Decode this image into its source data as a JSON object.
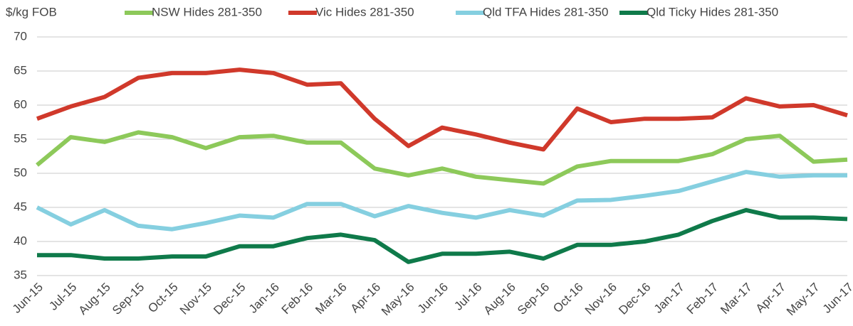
{
  "chart_data": {
    "type": "line",
    "y_label": "$/kg FOB",
    "categories": [
      "Jun-15",
      "Jul-15",
      "Aug-15",
      "Sep-15",
      "Oct-15",
      "Nov-15",
      "Dec-15",
      "Jan-16",
      "Feb-16",
      "Mar-16",
      "Apr-16",
      "May-16",
      "Jun-16",
      "Jul-16",
      "Aug-16",
      "Sep-16",
      "Oct-16",
      "Nov-16",
      "Dec-16",
      "Jan-17",
      "Feb-17",
      "Mar-17",
      "Apr-17",
      "May-17",
      "Jun-17"
    ],
    "series": [
      {
        "name": "NSW Hides 281-350",
        "color": "#8dc95a",
        "values": [
          51.2,
          55.3,
          54.6,
          56.0,
          55.3,
          53.7,
          55.3,
          55.5,
          54.5,
          54.5,
          50.7,
          49.7,
          50.7,
          49.5,
          49.0,
          48.5,
          51.0,
          51.8,
          51.8,
          51.8,
          52.8,
          55.0,
          55.5,
          51.7,
          52.0
        ]
      },
      {
        "name": "Vic Hides 281-350",
        "color": "#d0392b",
        "values": [
          58.0,
          59.8,
          61.2,
          64.0,
          64.7,
          64.7,
          65.2,
          64.7,
          63.0,
          63.2,
          58.0,
          54.0,
          56.7,
          55.7,
          54.5,
          53.5,
          59.5,
          57.5,
          58.0,
          58.0,
          58.2,
          61.0,
          59.8,
          60.0,
          58.5
        ]
      },
      {
        "name": "Qld TFA Hides 281-350",
        "color": "#85cfe0",
        "values": [
          45.0,
          42.5,
          44.6,
          42.3,
          41.8,
          42.7,
          43.8,
          43.5,
          45.5,
          45.5,
          43.7,
          45.2,
          44.2,
          43.5,
          44.6,
          43.8,
          46.0,
          46.1,
          46.7,
          47.4,
          48.8,
          50.2,
          49.5,
          49.7,
          49.7
        ]
      },
      {
        "name": "Qld Ticky Hides 281-350",
        "color": "#0f7a4a",
        "values": [
          38.0,
          38.0,
          37.5,
          37.5,
          37.8,
          37.8,
          39.3,
          39.3,
          40.5,
          41.0,
          40.2,
          37.0,
          38.2,
          38.2,
          38.5,
          37.5,
          39.5,
          39.5,
          40.0,
          41.0,
          43.0,
          44.6,
          43.5,
          43.5,
          43.3
        ]
      }
    ],
    "ylim": [
      35,
      70
    ],
    "yticks": [
      35,
      40,
      45,
      50,
      55,
      60,
      65,
      70
    ],
    "grid": true
  }
}
